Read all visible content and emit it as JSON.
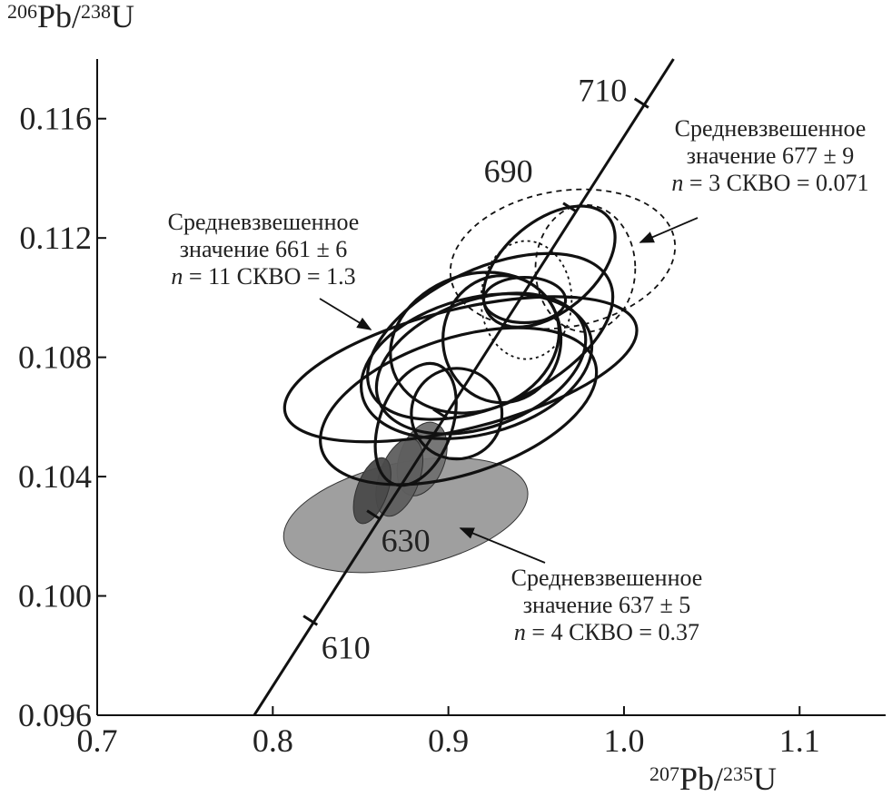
{
  "chart_data": {
    "type": "scatter",
    "subtype": "concordia-error-ellipses",
    "xlabel": {
      "iso": "207",
      "el": "Pb",
      "sep": "/",
      "iso2": "235",
      "el2": "U"
    },
    "ylabel": {
      "iso": "206",
      "el": "Pb",
      "sep": "/",
      "iso2": "238",
      "el2": "U"
    },
    "xlim": [
      0.7,
      1.149
    ],
    "ylim": [
      0.096,
      0.118
    ],
    "xticks": [
      {
        "v": 0.7,
        "label": "0.7"
      },
      {
        "v": 0.8,
        "label": "0.8"
      },
      {
        "v": 0.9,
        "label": "0.9"
      },
      {
        "v": 1.0,
        "label": "1.0"
      },
      {
        "v": 1.1,
        "label": "1.1"
      }
    ],
    "yticks": [
      {
        "v": 0.096,
        "label": "0.096"
      },
      {
        "v": 0.1,
        "label": "0.100"
      },
      {
        "v": 0.104,
        "label": "0.104"
      },
      {
        "v": 0.108,
        "label": "0.108"
      },
      {
        "v": 0.112,
        "label": "0.112"
      },
      {
        "v": 0.116,
        "label": "0.116"
      }
    ],
    "concordia": {
      "start": [
        0.7894,
        0.096
      ],
      "end": [
        1.0282,
        0.118
      ],
      "age_marks": [
        {
          "age": 610,
          "x": 0.8214,
          "y": 0.09918,
          "label": "610"
        },
        {
          "age": 630,
          "x": 0.8576,
          "y": 0.10271,
          "label": "630"
        },
        {
          "age": 650,
          "x": 0.8953,
          "y": 0.10611,
          "label": ""
        },
        {
          "age": 690,
          "x": 0.9693,
          "y": 0.11302,
          "label": "690"
        },
        {
          "age": 710,
          "x": 1.01,
          "y": 0.11652,
          "label": "710"
        }
      ]
    },
    "ellipses": [
      {
        "group": "661",
        "style": "solid",
        "x": 0.907,
        "y": 0.1076,
        "a": 0.103,
        "b": 0.002,
        "tilt": -14
      },
      {
        "group": "661",
        "style": "solid",
        "x": 0.9057,
        "y": 0.10636,
        "a": 0.0817,
        "b": 0.00228,
        "tilt": -18
      },
      {
        "group": "661",
        "style": "solid",
        "x": 0.9574,
        "y": 0.11104,
        "a": 0.0439,
        "b": 0.00152,
        "tilt": -40
      },
      {
        "group": "661",
        "style": "solid",
        "x": 0.9238,
        "y": 0.1087,
        "a": 0.0749,
        "b": 0.00228,
        "tilt": -25
      },
      {
        "group": "661",
        "style": "solid",
        "x": 0.916,
        "y": 0.1077,
        "a": 0.0672,
        "b": 0.00228,
        "tilt": -15
      },
      {
        "group": "661",
        "style": "solid",
        "x": 0.915,
        "y": 0.10849,
        "a": 0.0491,
        "b": 0.00228,
        "tilt": -20
      },
      {
        "group": "661",
        "style": "solid",
        "x": 0.9305,
        "y": 0.10861,
        "a": 0.0336,
        "b": 0.00213,
        "tilt": 0
      },
      {
        "group": "661",
        "style": "solid",
        "x": 0.9047,
        "y": 0.10611,
        "a": 0.0258,
        "b": 0.00152,
        "tilt": 0
      },
      {
        "group": "661",
        "style": "solid",
        "x": 0.9434,
        "y": 0.10992,
        "a": 0.0233,
        "b": 0.00076,
        "tilt": 0
      },
      {
        "group": "661",
        "style": "solid",
        "x": 0.8814,
        "y": 0.10575,
        "a": 0.0207,
        "b": 0.00213,
        "tilt": 20
      },
      {
        "group": "661",
        "style": "solid",
        "x": 0.9186,
        "y": 0.10779,
        "a": 0.062,
        "b": 0.00213,
        "tilt": -20
      },
      {
        "group": "677",
        "style": "dashed",
        "x": 0.9651,
        "y": 0.11129,
        "a": 0.0646,
        "b": 0.00228,
        "tilt": -10
      },
      {
        "group": "677",
        "style": "dotted",
        "x": 0.9444,
        "y": 0.10992,
        "a": 0.0258,
        "b": 0.00198,
        "tilt": 0
      },
      {
        "group": "677",
        "style": "dashed",
        "x": 0.978,
        "y": 0.11098,
        "a": 0.0284,
        "b": 0.00213,
        "tilt": 0
      },
      {
        "group": "637",
        "style": "filled",
        "fill": "#9a9a9a",
        "x": 0.8757,
        "y": 0.10271,
        "a": 0.0708,
        "b": 0.00176,
        "tilt": -12
      },
      {
        "group": "637",
        "style": "filled",
        "fill": "#707070",
        "x": 0.885,
        "y": 0.10459,
        "a": 0.0129,
        "b": 0.00128,
        "tilt": 20
      },
      {
        "group": "637",
        "style": "filled",
        "fill": "#5e5e5e",
        "x": 0.8721,
        "y": 0.10398,
        "a": 0.0114,
        "b": 0.00137,
        "tilt": 20
      },
      {
        "group": "637",
        "style": "filled",
        "fill": "#4a4a4a",
        "x": 0.8566,
        "y": 0.10353,
        "a": 0.0088,
        "b": 0.00116,
        "tilt": 20
      }
    ],
    "annotations": [
      {
        "id": "661",
        "line1": "Средневзвешенное",
        "line2": "значение 661 ± 6",
        "n_symbol": "n",
        "line3_rest": " = 11 СКВО = 1.3"
      },
      {
        "id": "677",
        "line1": "Средневзвешенное",
        "line2": "значение 677 ± 9",
        "n_symbol": "n",
        "line3_rest": " = 3 СКВО = 0.071"
      },
      {
        "id": "637",
        "line1": "Средневзвешенное",
        "line2": "значение 637 ± 5",
        "n_symbol": "n",
        "line3_rest": " = 4 СКВО = 0.37"
      }
    ]
  }
}
